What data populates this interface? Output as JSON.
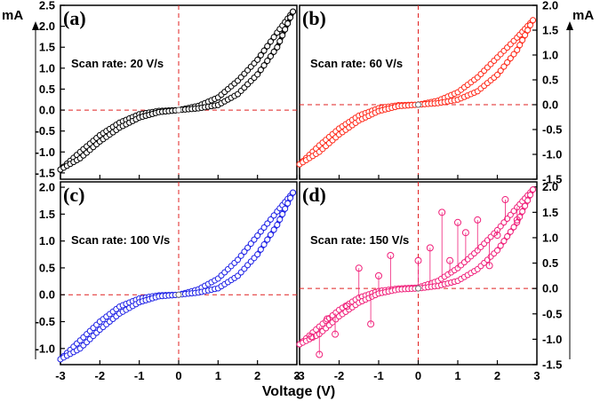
{
  "figure": {
    "xlabel": "Voltage (V)",
    "yunit_left": "mA",
    "yunit_right": "mA",
    "colors": {
      "a": "#000000",
      "b": "#ff2a1a",
      "c": "#1f22e6",
      "d": "#f0207a",
      "guide": "#e02020"
    }
  },
  "chart_data": [
    {
      "type": "scatter",
      "panel": "(a)",
      "annotation": "Scan rate: 20 V/s",
      "xlim": [
        -3,
        3
      ],
      "ylim": [
        -1.65,
        2.5
      ],
      "yticks": [
        -1.5,
        -1.0,
        -0.5,
        0.0,
        0.5,
        1.0,
        1.5,
        2.0,
        2.5
      ],
      "xticks": [
        -3,
        -2,
        -1,
        0,
        1,
        2,
        3
      ],
      "y_axis_side": "left",
      "grid": false,
      "marker": "open-circle",
      "color": "#000000",
      "series": [
        {
          "name": "",
          "branch": "upper",
          "x": [
            -3.0,
            -2.5,
            -2.0,
            -1.5,
            -1.0,
            -0.5,
            0.0,
            0.5,
            1.0,
            1.5,
            2.0,
            2.5,
            2.9
          ],
          "y": [
            -1.42,
            -1.0,
            -0.6,
            -0.3,
            -0.1,
            -0.02,
            0.0,
            0.1,
            0.3,
            0.7,
            1.2,
            1.85,
            2.35
          ]
        },
        {
          "name": "",
          "branch": "lower",
          "x": [
            -3.0,
            -2.5,
            -2.0,
            -1.5,
            -1.0,
            -0.5,
            0.0,
            0.5,
            1.0,
            1.5,
            2.0,
            2.5,
            2.9
          ],
          "y": [
            -1.42,
            -1.15,
            -0.75,
            -0.42,
            -0.18,
            -0.05,
            0.0,
            0.04,
            0.12,
            0.38,
            0.85,
            1.5,
            2.35
          ]
        }
      ]
    },
    {
      "type": "scatter",
      "panel": "(b)",
      "annotation": "Scan rate: 60 V/s",
      "xlim": [
        -3,
        3
      ],
      "ylim": [
        -1.5,
        2.0
      ],
      "yticks": [
        -1.5,
        -1.0,
        -0.5,
        0.0,
        0.5,
        1.0,
        1.5,
        2.0
      ],
      "xticks": [
        -3,
        -2,
        -1,
        0,
        1,
        2,
        3
      ],
      "y_axis_side": "right",
      "grid": false,
      "marker": "open-circle",
      "color": "#ff2a1a",
      "series": [
        {
          "name": "",
          "branch": "upper",
          "x": [
            -3.0,
            -2.5,
            -2.0,
            -1.5,
            -1.0,
            -0.5,
            0.0,
            0.5,
            1.0,
            1.5,
            2.0,
            2.5,
            2.9
          ],
          "y": [
            -1.2,
            -0.82,
            -0.48,
            -0.22,
            -0.07,
            -0.01,
            0.0,
            0.08,
            0.25,
            0.55,
            0.95,
            1.35,
            1.7
          ]
        },
        {
          "name": "",
          "branch": "lower",
          "x": [
            -3.0,
            -2.5,
            -2.0,
            -1.5,
            -1.0,
            -0.5,
            0.0,
            0.5,
            1.0,
            1.5,
            2.0,
            2.5,
            2.9
          ],
          "y": [
            -1.2,
            -0.95,
            -0.6,
            -0.32,
            -0.13,
            -0.03,
            0.0,
            0.03,
            0.1,
            0.27,
            0.6,
            1.1,
            1.7
          ]
        }
      ]
    },
    {
      "type": "scatter",
      "panel": "(c)",
      "annotation": "Scan rate: 100 V/s",
      "xlim": [
        -3,
        3
      ],
      "ylim": [
        -1.3,
        2.1
      ],
      "yticks": [
        -1.0,
        -0.5,
        0.0,
        0.5,
        1.0,
        1.5,
        2.0
      ],
      "xticks": [
        -3,
        -2,
        -1,
        0,
        1,
        2,
        3
      ],
      "y_axis_side": "left",
      "grid": false,
      "marker": "open-circle",
      "color": "#1f22e6",
      "series": [
        {
          "name": "",
          "branch": "upper",
          "x": [
            -3.0,
            -2.5,
            -2.0,
            -1.5,
            -1.0,
            -0.5,
            0.0,
            0.5,
            1.0,
            1.5,
            2.0,
            2.5,
            2.9
          ],
          "y": [
            -1.2,
            -0.85,
            -0.5,
            -0.22,
            -0.07,
            -0.01,
            0.0,
            0.1,
            0.3,
            0.65,
            1.1,
            1.55,
            1.9
          ]
        },
        {
          "name": "",
          "branch": "lower",
          "x": [
            -3.0,
            -2.5,
            -2.0,
            -1.5,
            -1.0,
            -0.5,
            0.0,
            0.5,
            1.0,
            1.5,
            2.0,
            2.5,
            2.9
          ],
          "y": [
            -1.2,
            -1.0,
            -0.65,
            -0.35,
            -0.14,
            -0.03,
            0.0,
            0.04,
            0.12,
            0.35,
            0.75,
            1.3,
            1.9
          ]
        }
      ]
    },
    {
      "type": "scatter",
      "panel": "(d)",
      "annotation": "Scan rate: 150 V/s",
      "xlim": [
        -3,
        3
      ],
      "ylim": [
        -1.5,
        2.1
      ],
      "yticks": [
        -1.5,
        -1.0,
        -0.5,
        0.0,
        0.5,
        1.0,
        1.5,
        2.0
      ],
      "xticks": [
        -3,
        -2,
        -1,
        0,
        1,
        2,
        3
      ],
      "y_axis_side": "right",
      "grid": false,
      "marker": "open-circle",
      "color": "#f0207a",
      "series": [
        {
          "name": "",
          "branch": "upper",
          "x": [
            -3.0,
            -2.5,
            -2.0,
            -1.5,
            -1.0,
            -0.5,
            0.0,
            0.5,
            1.0,
            1.5,
            2.0,
            2.5,
            2.9
          ],
          "y": [
            -1.1,
            -0.75,
            -0.42,
            -0.18,
            -0.05,
            0.0,
            0.02,
            0.15,
            0.4,
            0.75,
            1.15,
            1.6,
            1.95
          ]
        },
        {
          "name": "",
          "branch": "lower",
          "x": [
            -3.0,
            -2.5,
            -2.0,
            -1.5,
            -1.0,
            -0.5,
            0.0,
            0.5,
            1.0,
            1.5,
            2.0,
            2.5,
            2.9
          ],
          "y": [
            -1.1,
            -0.9,
            -0.55,
            -0.28,
            -0.1,
            -0.02,
            0.0,
            0.05,
            0.15,
            0.38,
            0.75,
            1.3,
            1.95
          ]
        },
        {
          "name": "",
          "branch": "noise-spikes",
          "x": [
            -2.7,
            -2.5,
            -2.3,
            -2.1,
            -1.8,
            -1.5,
            -1.2,
            -1.0,
            -0.7,
            0.0,
            0.3,
            0.6,
            0.8,
            1.0,
            1.2,
            1.5,
            1.8,
            2.0,
            2.2,
            2.5
          ],
          "y": [
            -0.95,
            -1.3,
            -0.6,
            -0.9,
            -0.35,
            0.4,
            -0.7,
            0.25,
            0.65,
            0.55,
            0.8,
            1.5,
            0.55,
            1.3,
            1.1,
            1.35,
            0.45,
            1.05,
            1.75,
            1.35
          ]
        }
      ]
    }
  ]
}
